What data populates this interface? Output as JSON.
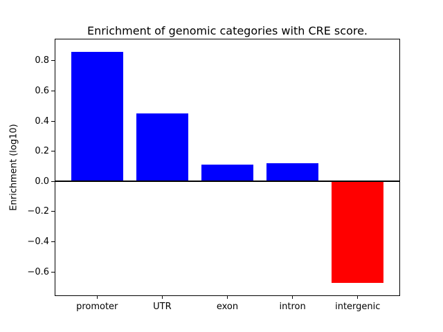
{
  "chart_data": {
    "type": "bar",
    "title": "Enrichment of genomic categories with CRE score.",
    "ylabel": "Enrichment (log10)",
    "xlabel": "",
    "categories": [
      "promoter",
      "UTR",
      "exon",
      "intron",
      "intergenic"
    ],
    "values": [
      0.86,
      0.45,
      0.11,
      0.12,
      -0.675
    ],
    "bar_colors": [
      "#0000ff",
      "#0000ff",
      "#0000ff",
      "#0000ff",
      "#ff0000"
    ],
    "positive_color": "#0000ff",
    "negative_color": "#ff0000",
    "ylim": [
      -0.756,
      0.942
    ],
    "xlim": [
      -0.64,
      4.64
    ],
    "bar_width": 0.8,
    "yticks": [
      0.8,
      0.6,
      0.4,
      0.2,
      0.0,
      -0.2,
      -0.4,
      -0.6
    ],
    "ytick_labels": [
      "0.8",
      "0.6",
      "0.4",
      "0.2",
      "0.0",
      "−0.2",
      "−0.4",
      "−0.6"
    ],
    "zero_line": true,
    "grid": false,
    "legend": false,
    "axis_color": "#000000",
    "background_color": "#ffffff"
  }
}
